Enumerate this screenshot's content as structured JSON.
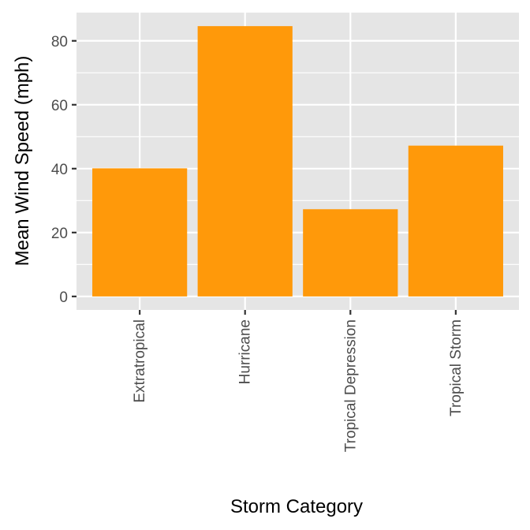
{
  "chart_data": {
    "type": "bar",
    "title": "",
    "xlabel": "Storm Category",
    "ylabel": "Mean Wind Speed (mph)",
    "categories": [
      "Extratropical",
      "Hurricane",
      "Tropical Depression",
      "Tropical Storm"
    ],
    "values": [
      40.1,
      84.6,
      27.3,
      47.2
    ],
    "ylim": [
      -4.23,
      88.83
    ],
    "yticks": [
      0,
      20,
      40,
      60,
      80
    ],
    "ytick_labels": [
      "0",
      "20",
      "40",
      "60",
      "80"
    ],
    "bar_color": "#FF990A",
    "panel_background": "#E5E5E5",
    "grid": true,
    "grid_color": "#FFFFFF",
    "legend": "none"
  }
}
